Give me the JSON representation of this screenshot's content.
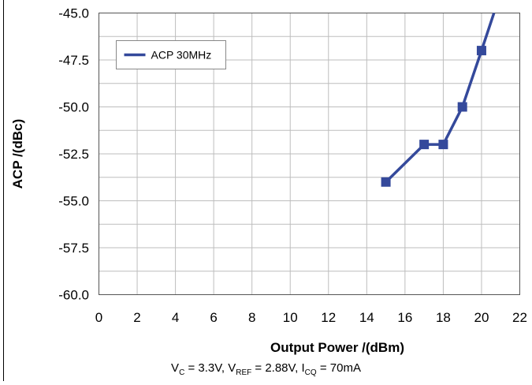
{
  "chart_data": {
    "type": "line",
    "title": "",
    "xlabel": "Output Power /(dBm)",
    "ylabel": "ACP /(dBc)",
    "xlim": [
      0,
      22
    ],
    "ylim": [
      -60.0,
      -45.0
    ],
    "x_ticks": [
      "0",
      "2",
      "4",
      "6",
      "8",
      "10",
      "12",
      "14",
      "16",
      "18",
      "20",
      "22"
    ],
    "y_ticks": [
      "-45.0",
      "-47.5",
      "-50.0",
      "-52.5",
      "-55.0",
      "-57.5",
      "-60.0"
    ],
    "grid": true,
    "legend": {
      "position": "top-left",
      "entries": [
        "ACP 30MHz"
      ]
    },
    "series": [
      {
        "name": "ACP 30MHz",
        "color": "#34499b",
        "x": [
          15,
          17,
          18,
          19,
          20,
          20.65
        ],
        "y": [
          -54.0,
          -52.0,
          -52.0,
          -50.0,
          -47.0,
          -45.0
        ],
        "markers": [
          true,
          true,
          true,
          true,
          true,
          false
        ]
      }
    ]
  },
  "caption": {
    "v_c": "V",
    "v_c_sub": "C",
    "v_c_val": " = 3.3V, ",
    "v_ref": "V",
    "v_ref_sub": "REF",
    "v_ref_val": " = 2.88V, ",
    "i_cq": "I",
    "i_cq_sub": "CQ",
    "i_cq_val": " = 70mA"
  }
}
